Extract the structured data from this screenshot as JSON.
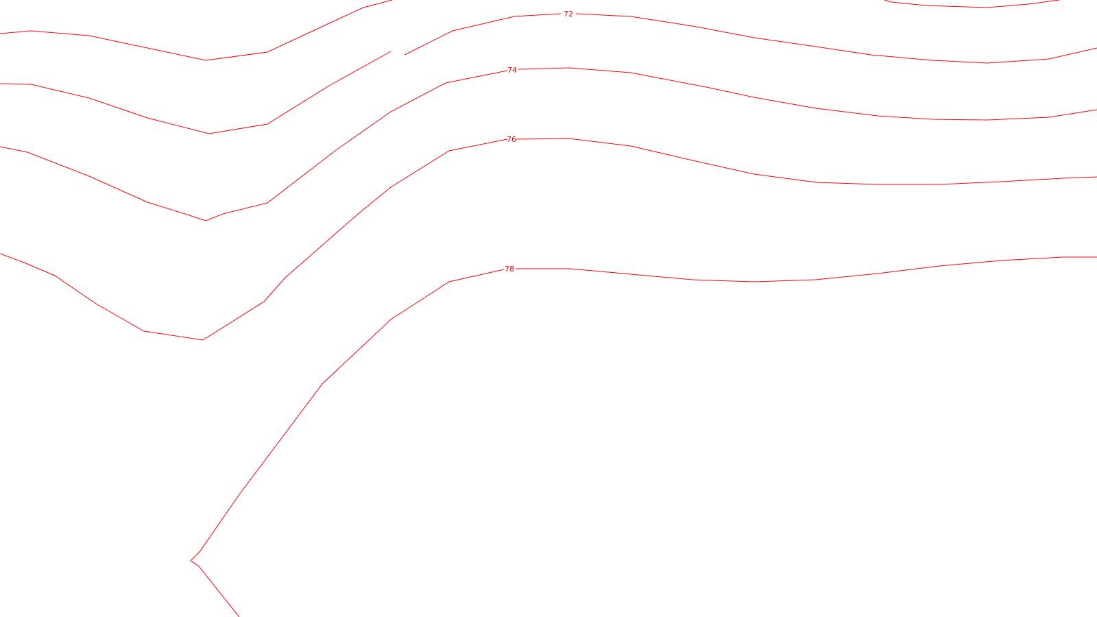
{
  "map": {
    "line_color": "#ff0000",
    "background": "#ffffff",
    "contours": [
      {
        "id": "70",
        "label": null
      },
      {
        "id": "71",
        "label": null
      },
      {
        "id": "72",
        "label": "72"
      },
      {
        "id": "73",
        "label": null
      },
      {
        "id": "74",
        "label": "74"
      },
      {
        "id": "76",
        "label": "76"
      },
      {
        "id": "78",
        "label": "78"
      }
    ]
  }
}
